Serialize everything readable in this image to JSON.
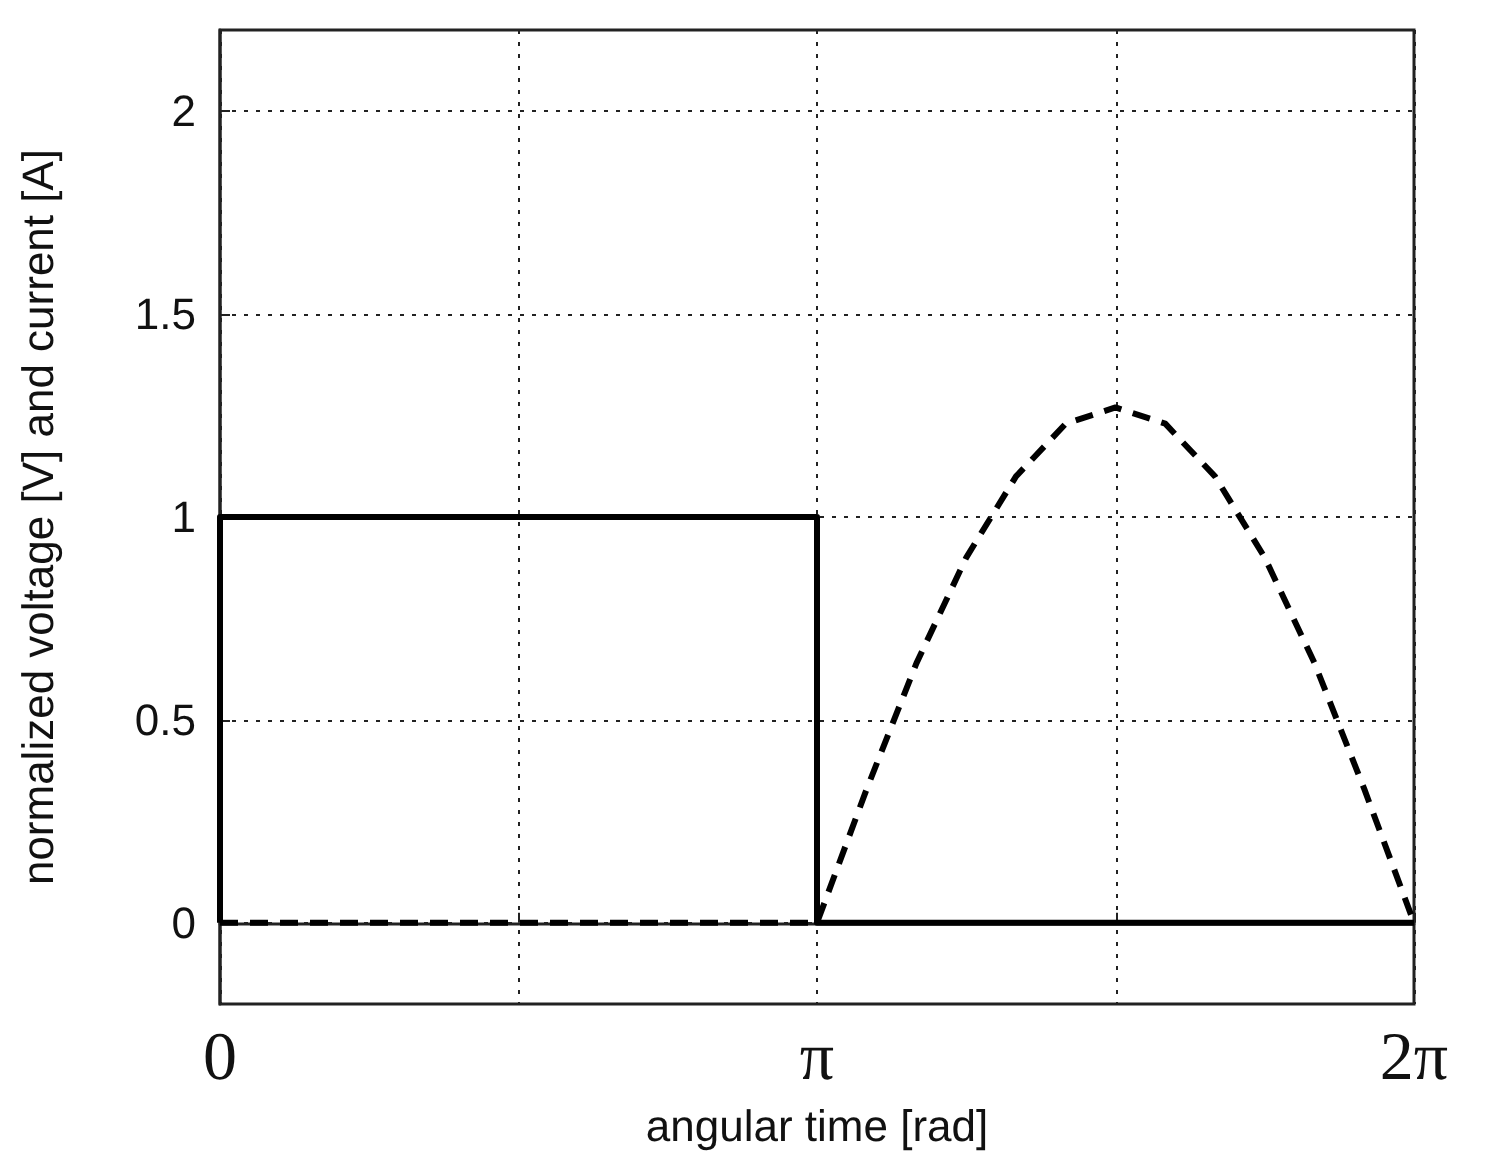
{
  "chart_data": {
    "type": "line",
    "xlabel": "angular time [rad]",
    "ylabel": "normalized voltage [V] and current [A]",
    "xlim": [
      0,
      6.2832
    ],
    "xticks": [
      0,
      {
        "value": 1.5708,
        "label": null
      },
      {
        "value": 3.1416,
        "label": "π"
      },
      {
        "value": 4.7124,
        "label": null
      },
      {
        "value": 6.2832,
        "label": "2π"
      }
    ],
    "ylim": [
      -0.2,
      2.2
    ],
    "yticks": [
      0,
      0.5,
      1,
      1.5,
      2
    ],
    "grid": true,
    "marker": "none",
    "series": [
      {
        "color": "#000000",
        "line_style": "solid",
        "x": [
          0,
          0,
          3.1416,
          3.1416,
          6.2832
        ],
        "values": [
          0,
          1,
          1,
          0,
          0
        ]
      },
      {
        "color": "#000000",
        "line_style": "dashed",
        "x": [
          0,
          3.1416,
          3.4034,
          3.6652,
          3.927,
          4.1888,
          4.4506,
          4.7124,
          4.9742,
          5.236,
          5.4978,
          5.7596,
          6.0214,
          6.2832
        ],
        "values": [
          0,
          0,
          0.33,
          0.64,
          0.9,
          1.1,
          1.23,
          1.27,
          1.23,
          1.1,
          0.9,
          0.64,
          0.33,
          0
        ]
      }
    ]
  }
}
